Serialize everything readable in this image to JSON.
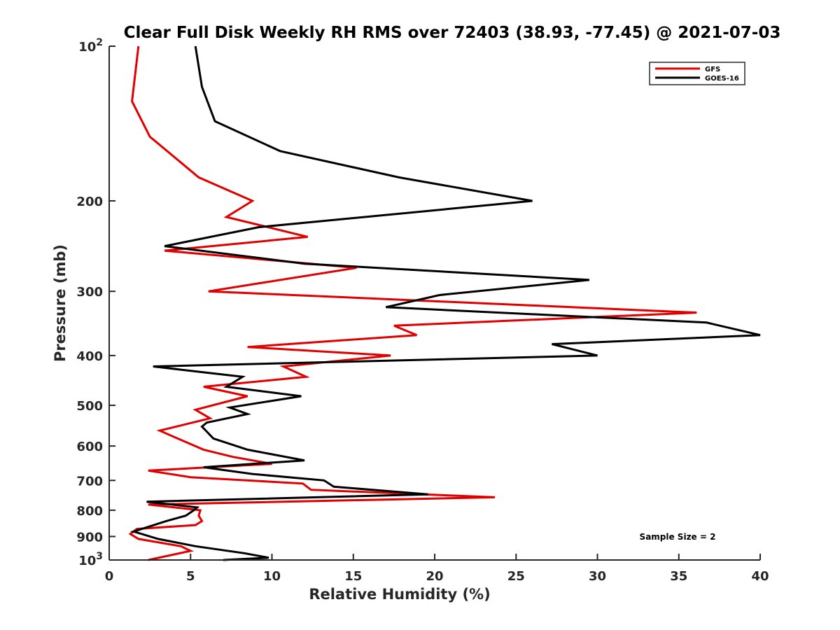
{
  "chart_data": {
    "type": "line",
    "title": "Clear Full Disk Weekly RH RMS over 72403 (38.93, -77.45) @ 2021-07-03",
    "xlabel": "Relative Humidity (%)",
    "ylabel": "Pressure (mb)",
    "xlim": [
      0,
      40
    ],
    "ylim": [
      100,
      1000
    ],
    "yscale": "log",
    "y_reversed": true,
    "x_ticks": [
      "0",
      "5",
      "10",
      "15",
      "20",
      "25",
      "30",
      "35",
      "40"
    ],
    "y_ticks": [
      {
        "value": 100,
        "base": "10",
        "exp": "2"
      },
      {
        "value": 200,
        "label": "200"
      },
      {
        "value": 300,
        "label": "300"
      },
      {
        "value": 400,
        "label": "400"
      },
      {
        "value": 500,
        "label": "500"
      },
      {
        "value": 600,
        "label": "600"
      },
      {
        "value": 700,
        "label": "700"
      },
      {
        "value": 800,
        "label": "800"
      },
      {
        "value": 900,
        "label": "900"
      },
      {
        "value": 1000,
        "base": "10",
        "exp": "3"
      }
    ],
    "legend_position": "top-right",
    "annotation": "Sample Size = 2",
    "series": [
      {
        "name": "GFS",
        "color": "#e00000",
        "x": [
          1.8,
          1.4,
          2.5,
          5.5,
          8.8,
          7.2,
          12.2,
          3.4,
          15.2,
          6.1,
          36.1,
          17.5,
          18.9,
          8.5,
          17.3,
          10.7,
          12.1,
          5.8,
          8.5,
          5.3,
          6.2,
          3.1,
          4.2,
          5.8,
          7.6,
          10.0,
          2.4,
          5.0,
          11.9,
          12.4,
          23.7,
          2.4,
          5.6,
          5.5,
          5.7,
          5.3,
          1.7,
          1.3,
          1.8,
          4.4,
          5.0,
          2.4
        ],
        "y": [
          100,
          128,
          150,
          180,
          200,
          215,
          235,
          250,
          270,
          300,
          330,
          350,
          365,
          385,
          400,
          420,
          440,
          460,
          480,
          510,
          530,
          560,
          580,
          610,
          630,
          650,
          670,
          690,
          710,
          730,
          755,
          780,
          800,
          820,
          840,
          855,
          870,
          890,
          910,
          940,
          960,
          1000
        ]
      },
      {
        "name": "GOES-16",
        "color": "#000000",
        "x": [
          5.3,
          5.7,
          6.5,
          10.5,
          17.8,
          26.0,
          9.2,
          3.4,
          12.0,
          29.5,
          20.3,
          17.0,
          36.7,
          40.0,
          27.2,
          30.0,
          2.7,
          8.2,
          7.2,
          11.8,
          7.4,
          8.5,
          6.0,
          5.7,
          6.4,
          8.5,
          12.0,
          5.8,
          8.8,
          13.2,
          13.8,
          19.6,
          2.3,
          5.4,
          5.2,
          4.7,
          3.5,
          1.5,
          3.0,
          5.3,
          8.3,
          9.8,
          7.0
        ],
        "y": [
          100,
          120,
          140,
          160,
          180,
          200,
          225,
          245,
          265,
          285,
          305,
          322,
          345,
          365,
          380,
          400,
          420,
          440,
          460,
          480,
          505,
          520,
          540,
          550,
          580,
          610,
          640,
          660,
          680,
          700,
          720,
          745,
          770,
          790,
          800,
          820,
          840,
          880,
          910,
          940,
          970,
          990,
          1000
        ]
      }
    ]
  }
}
